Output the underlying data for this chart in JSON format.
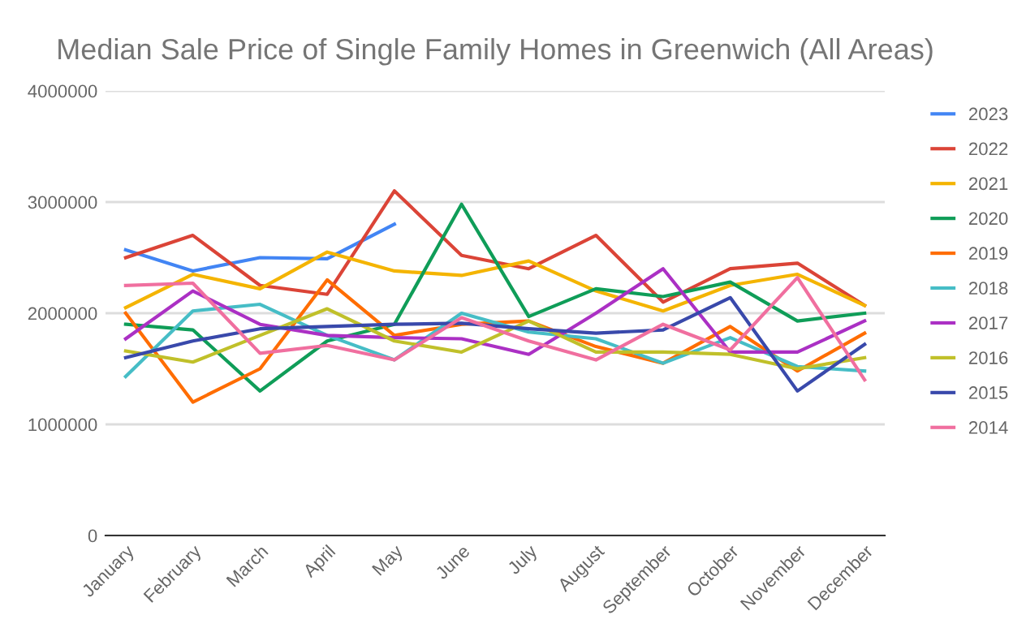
{
  "chart_data": {
    "type": "line",
    "title": "Median Sale Price of Single Family Homes in Greenwich (All Areas)",
    "categories": [
      "January",
      "February",
      "March",
      "April",
      "May",
      "June",
      "July",
      "August",
      "September",
      "October",
      "November",
      "December"
    ],
    "series": [
      {
        "name": "2023",
        "color": "#4285f4",
        "values": [
          2570000,
          2380000,
          2500000,
          2490000,
          2800000,
          null,
          null,
          null,
          null,
          null,
          null,
          null
        ]
      },
      {
        "name": "2022",
        "color": "#db4437",
        "values": [
          2500000,
          2700000,
          2250000,
          2170000,
          3100000,
          2520000,
          2400000,
          2700000,
          2100000,
          2400000,
          2450000,
          2070000
        ]
      },
      {
        "name": "2021",
        "color": "#f4b400",
        "values": [
          2050000,
          2350000,
          2220000,
          2550000,
          2380000,
          2340000,
          2470000,
          2200000,
          2020000,
          2250000,
          2350000,
          2070000
        ]
      },
      {
        "name": "2020",
        "color": "#0f9d58",
        "values": [
          1900000,
          1850000,
          1300000,
          1750000,
          1900000,
          2980000,
          1970000,
          2220000,
          2150000,
          2280000,
          1930000,
          2000000
        ]
      },
      {
        "name": "2019",
        "color": "#ff6d01",
        "values": [
          2000000,
          1200000,
          1500000,
          2300000,
          1800000,
          1900000,
          1930000,
          1700000,
          1550000,
          1880000,
          1480000,
          1820000
        ]
      },
      {
        "name": "2018",
        "color": "#46bdc6",
        "values": [
          1430000,
          2020000,
          2080000,
          1800000,
          1580000,
          2000000,
          1830000,
          1770000,
          1550000,
          1780000,
          1520000,
          1480000
        ]
      },
      {
        "name": "2017",
        "color": "#ab30c4",
        "values": [
          1770000,
          2200000,
          1900000,
          1800000,
          1780000,
          1770000,
          1630000,
          2000000,
          2400000,
          1650000,
          1650000,
          1930000
        ]
      },
      {
        "name": "2016",
        "color": "#c0c02a",
        "values": [
          1660000,
          1560000,
          1800000,
          2040000,
          1750000,
          1650000,
          1930000,
          1650000,
          1650000,
          1630000,
          1500000,
          1600000
        ]
      },
      {
        "name": "2015",
        "color": "#3949ab",
        "values": [
          1600000,
          1750000,
          1860000,
          1880000,
          1900000,
          1910000,
          1860000,
          1820000,
          1850000,
          2140000,
          1300000,
          1720000
        ]
      },
      {
        "name": "2014",
        "color": "#f06f9f",
        "values": [
          2250000,
          2270000,
          1640000,
          1710000,
          1580000,
          1960000,
          1750000,
          1580000,
          1900000,
          1670000,
          2320000,
          1400000
        ]
      }
    ],
    "ylim": [
      0,
      4000000
    ],
    "yticks": [
      0,
      1000000,
      2000000,
      3000000,
      4000000
    ],
    "grid": "y",
    "legend": "right",
    "marker": "none",
    "line_style": "solid"
  }
}
